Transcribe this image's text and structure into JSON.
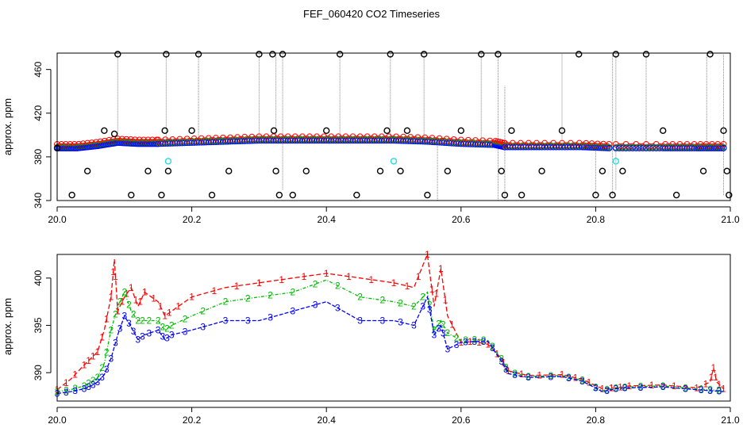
{
  "title": "FEF_060420  CO2 Timeseries",
  "colors": {
    "series1": "#ff0000",
    "series2": "#00bb00",
    "series3": "#0000ff",
    "outlier": "#000000",
    "flag": "#22dddd",
    "dropline": "#888888"
  },
  "chart_data": [
    {
      "type": "scatter",
      "ylabel": "approx. ppm",
      "xlabel": "",
      "xlim": [
        20.0,
        21.0
      ],
      "ylim": [
        340,
        475
      ],
      "xticks": [
        "20.0",
        "20.2",
        "20.4",
        "20.6",
        "20.8",
        "21.0"
      ],
      "yticks": [
        "340",
        "380",
        "420",
        "460"
      ],
      "grid": false,
      "baseline_segments": [
        {
          "x": [
            20.0,
            20.03,
            20.06,
            20.09,
            20.12,
            20.15
          ],
          "y": [
            388,
            388,
            390,
            393,
            392,
            392
          ]
        },
        {
          "x": [
            20.15,
            20.2,
            20.25,
            20.3,
            20.35,
            20.4,
            20.45,
            20.5,
            20.55,
            20.6,
            20.65,
            20.665
          ],
          "y": [
            392,
            393,
            394,
            395,
            395,
            395,
            395,
            395,
            394,
            392,
            391,
            389
          ]
        },
        {
          "x": [
            20.665,
            20.72,
            20.78,
            20.82
          ],
          "y": [
            389,
            389,
            389,
            388
          ]
        },
        {
          "x": [
            20.83,
            20.9,
            20.95,
            20.99
          ],
          "y": [
            388,
            388,
            388,
            388
          ]
        }
      ],
      "outliers": {
        "x": [
          20.0,
          20.022,
          20.045,
          20.07,
          20.085,
          20.09,
          20.11,
          20.135,
          20.155,
          20.16,
          20.162,
          20.165,
          20.2,
          20.21,
          20.23,
          20.255,
          20.3,
          20.32,
          20.322,
          20.325,
          20.33,
          20.335,
          20.35,
          20.37,
          20.4,
          20.42,
          20.445,
          20.48,
          20.49,
          20.495,
          20.51,
          20.52,
          20.545,
          20.55,
          20.58,
          20.6,
          20.63,
          20.655,
          20.66,
          20.665,
          20.675,
          20.69,
          20.72,
          20.75,
          20.775,
          20.8,
          20.81,
          20.825,
          20.83,
          20.84,
          20.875,
          20.9,
          20.92,
          20.96,
          20.97,
          20.99,
          20.995,
          20.998
        ],
        "y": [
          388,
          345,
          367,
          404,
          401,
          474,
          345,
          367,
          345,
          404,
          474,
          367,
          404,
          474,
          345,
          367,
          474,
          474,
          404,
          367,
          345,
          474,
          345,
          367,
          404,
          474,
          345,
          367,
          404,
          474,
          367,
          404,
          474,
          345,
          367,
          404,
          474,
          474,
          367,
          345,
          404,
          345,
          367,
          404,
          474,
          345,
          367,
          345,
          474,
          367,
          474,
          404,
          345,
          367,
          474,
          404,
          367,
          345
        ],
        "droplines": [
          [
            20.0,
            340,
            425
          ],
          [
            20.09,
            394,
            474
          ],
          [
            20.162,
            392,
            474
          ],
          [
            20.21,
            393,
            474
          ],
          [
            20.3,
            395,
            474
          ],
          [
            20.325,
            395,
            474
          ],
          [
            20.335,
            350,
            474
          ],
          [
            20.42,
            395,
            474
          ],
          [
            20.495,
            395,
            474
          ],
          [
            20.545,
            394,
            474
          ],
          [
            20.565,
            340,
            394
          ],
          [
            20.63,
            392,
            474
          ],
          [
            20.655,
            340,
            474
          ],
          [
            20.665,
            340,
            445
          ],
          [
            20.75,
            389,
            474
          ],
          [
            20.8,
            345,
            389
          ],
          [
            20.825,
            345,
            474
          ],
          [
            20.83,
            350,
            474
          ],
          [
            20.875,
            388,
            474
          ],
          [
            20.965,
            388,
            474
          ],
          [
            20.99,
            345,
            474
          ]
        ]
      },
      "flags": {
        "x": [
          20.165,
          20.5,
          20.83
        ],
        "y": [
          376,
          376,
          376
        ]
      }
    },
    {
      "type": "line",
      "ylabel": "approx. ppm",
      "xlabel": "",
      "xlim": [
        20.0,
        21.0
      ],
      "ylim": [
        387,
        402.5
      ],
      "xticks": [
        "20.0",
        "20.2",
        "20.4",
        "20.6",
        "20.8",
        "21.0"
      ],
      "yticks": [
        "390",
        "395",
        "400"
      ],
      "grid": false,
      "series": [
        {
          "name": "1",
          "x": [
            20.0,
            20.02,
            20.04,
            20.05,
            20.06,
            20.07,
            20.08,
            20.085,
            20.09,
            20.1,
            20.11,
            20.12,
            20.13,
            20.15,
            20.16,
            20.17,
            20.2,
            20.25,
            20.3,
            20.35,
            20.4,
            20.45,
            20.5,
            20.53,
            20.55,
            20.56,
            20.57,
            20.58,
            20.6,
            20.62,
            20.64,
            20.66,
            20.67,
            20.7,
            20.75,
            20.78,
            20.81,
            20.83,
            20.85,
            20.9,
            20.95,
            20.97,
            20.975,
            20.98,
            20.99
          ],
          "y": [
            388.2,
            389.3,
            390.8,
            391.5,
            392.2,
            394.5,
            398,
            402,
            396.5,
            398,
            399,
            397,
            398.5,
            397.5,
            396,
            396.5,
            398,
            399,
            399.5,
            400,
            400.5,
            400,
            399.5,
            399,
            402.5,
            397,
            401,
            396,
            393.2,
            393.3,
            393,
            391.5,
            390.2,
            389.7,
            389.8,
            389.3,
            388.3,
            388.4,
            388.6,
            388.7,
            388.4,
            389,
            390.5,
            389,
            388.3
          ]
        },
        {
          "name": "2",
          "x": [
            20.0,
            20.02,
            20.04,
            20.05,
            20.06,
            20.07,
            20.08,
            20.09,
            20.1,
            20.11,
            20.12,
            20.13,
            20.15,
            20.16,
            20.17,
            20.2,
            20.25,
            20.3,
            20.35,
            20.4,
            20.45,
            20.5,
            20.53,
            20.55,
            20.56,
            20.57,
            20.58,
            20.6,
            20.62,
            20.64,
            20.66,
            20.67,
            20.7,
            20.75,
            20.78,
            20.81,
            20.83,
            20.85,
            20.9,
            20.95,
            20.97,
            20.99
          ],
          "y": [
            388,
            388.2,
            388.6,
            389,
            389.5,
            391,
            394.5,
            397,
            398.5,
            396.5,
            395.5,
            395.5,
            395.5,
            394.5,
            395,
            396,
            397.5,
            398,
            398.5,
            399.8,
            398,
            397.5,
            397,
            398.5,
            394.5,
            395.5,
            394.2,
            393.4,
            393.5,
            393.4,
            391.5,
            390.1,
            389.6,
            389.7,
            389.2,
            388.1,
            388.4,
            388.5,
            388.6,
            388.3,
            388.2,
            388.1
          ]
        },
        {
          "name": "3",
          "x": [
            20.0,
            20.02,
            20.04,
            20.05,
            20.06,
            20.07,
            20.08,
            20.09,
            20.1,
            20.11,
            20.12,
            20.13,
            20.15,
            20.16,
            20.17,
            20.2,
            20.25,
            20.3,
            20.35,
            20.4,
            20.45,
            20.5,
            20.53,
            20.55,
            20.56,
            20.57,
            20.58,
            20.6,
            20.62,
            20.64,
            20.66,
            20.67,
            20.7,
            20.75,
            20.78,
            20.81,
            20.83,
            20.85,
            20.9,
            20.95,
            20.97,
            20.99
          ],
          "y": [
            387.8,
            388,
            388.3,
            388.6,
            389,
            389.8,
            391.5,
            394,
            396,
            394.8,
            393.5,
            394,
            394.5,
            393.5,
            394,
            394.5,
            395.5,
            395.5,
            396.5,
            397.5,
            395.5,
            395.5,
            395,
            398,
            394,
            395,
            392.5,
            393.2,
            393.3,
            393.3,
            391.2,
            389.9,
            389.5,
            389.6,
            389.1,
            388,
            388.3,
            388.4,
            388.5,
            388.2,
            388.1,
            388
          ]
        }
      ]
    }
  ]
}
